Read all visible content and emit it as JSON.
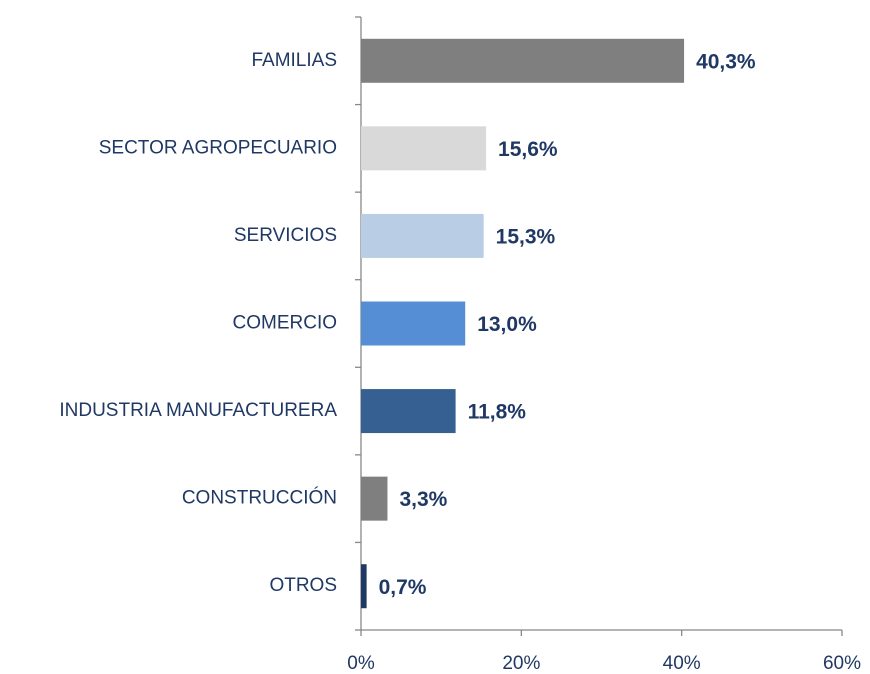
{
  "chart_data": {
    "type": "bar",
    "orientation": "horizontal",
    "categories": [
      "FAMILIAS",
      "SECTOR AGROPECUARIO",
      "SERVICIOS",
      "COMERCIO",
      "INDUSTRIA MANUFACTURERA",
      "CONSTRUCCIÓN",
      "OTROS"
    ],
    "values": [
      40.3,
      15.6,
      15.3,
      13.0,
      11.8,
      3.3,
      0.7
    ],
    "value_labels": [
      "40,3%",
      "15,6%",
      "15,3%",
      "13,0%",
      "11,8%",
      "3,3%",
      "0,7%"
    ],
    "colors": [
      "#7f7f7f",
      "#d9d9d9",
      "#b9cde5",
      "#558ed5",
      "#376092",
      "#7f7f7f",
      "#1f3864"
    ],
    "xlim": [
      0,
      60
    ],
    "xticks": [
      {
        "value": 0,
        "label": "0%"
      },
      {
        "value": 20,
        "label": "20%"
      },
      {
        "value": 40,
        "label": "40%"
      },
      {
        "value": 60,
        "label": "60%"
      }
    ]
  }
}
